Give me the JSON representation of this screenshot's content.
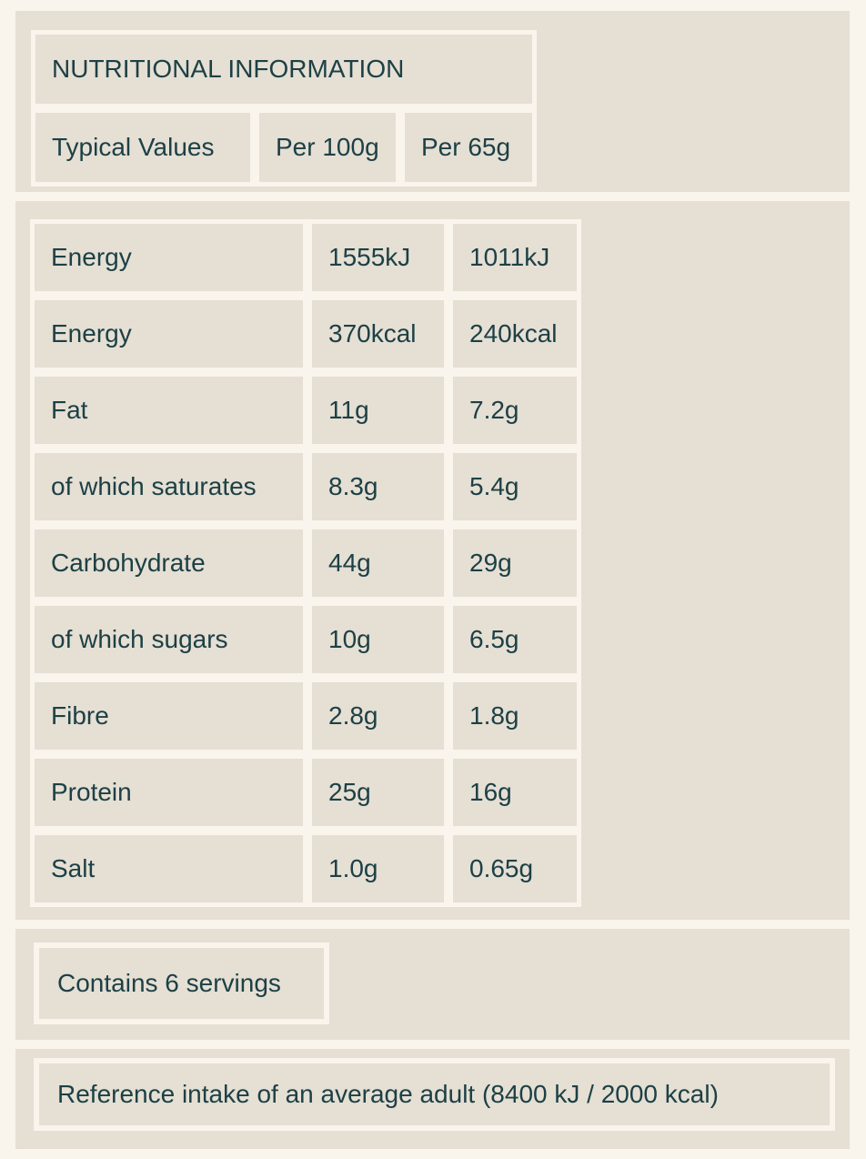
{
  "colors": {
    "page_background": "#f9f5ed",
    "panel_background": "#e5dfd4",
    "cell_border": "#f9f5ed",
    "text": "#1d4045"
  },
  "header": {
    "title": "NUTRITIONAL INFORMATION",
    "columns": [
      "Typical Values",
      "Per 100g",
      "Per 65g"
    ]
  },
  "nutrition_table": {
    "rows": [
      {
        "label": "Energy",
        "per_100g": "1555kJ",
        "per_65g": "1011kJ"
      },
      {
        "label": "Energy",
        "per_100g": "370kcal",
        "per_65g": "240kcal"
      },
      {
        "label": "Fat",
        "per_100g": "11g",
        "per_65g": "7.2g"
      },
      {
        "label": "of which saturates",
        "per_100g": "8.3g",
        "per_65g": "5.4g"
      },
      {
        "label": "Carbohydrate",
        "per_100g": "44g",
        "per_65g": "29g"
      },
      {
        "label": "of which sugars",
        "per_100g": "10g",
        "per_65g": "6.5g"
      },
      {
        "label": "Fibre",
        "per_100g": "2.8g",
        "per_65g": "1.8g"
      },
      {
        "label": "Protein",
        "per_100g": "25g",
        "per_65g": "16g"
      },
      {
        "label": "Salt",
        "per_100g": "1.0g",
        "per_65g": "0.65g"
      }
    ]
  },
  "servings_note": "Contains 6 servings",
  "reference_note": "Reference intake of an average adult (8400 kJ / 2000 kcal)"
}
